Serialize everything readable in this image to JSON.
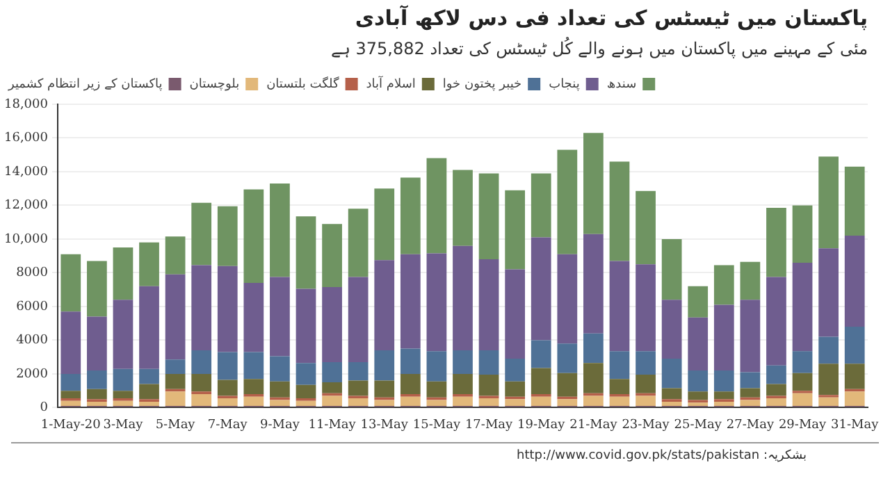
{
  "chart_data": {
    "type": "bar",
    "stacked": true,
    "title": "پاکستان میں ٹیسٹس کی تعداد فی دس لاکھ آبادی",
    "subtitle": "مئی کے مہینے میں پاکستان میں ہونے والے کُل ٹیسٹس کی تعداد 375,882 ہے",
    "annotations": [
      "بشکریہ: http://www.covid.gov.pk/stats/pakistan"
    ],
    "categories": [
      "1-May-20",
      null,
      "3-May",
      null,
      "5-May",
      null,
      "7-May",
      null,
      "9-May",
      null,
      "11-May",
      null,
      "13-May",
      null,
      "15-May",
      null,
      "17-May",
      null,
      "19-May",
      null,
      "21-May",
      null,
      "23-May",
      null,
      "25-May",
      null,
      "27-May",
      null,
      "29-May",
      null,
      "31-May"
    ],
    "ylim": [
      0,
      18000
    ],
    "yticks": [
      0,
      2000,
      4000,
      6000,
      8000,
      {
        "value": 10000,
        "label": "10,000"
      },
      {
        "value": 12000,
        "label": "12,000"
      },
      {
        "value": 14000,
        "label": "14,000"
      },
      {
        "value": 16000,
        "label": "16,000"
      },
      {
        "value": 18000,
        "label": "18,000"
      }
    ],
    "grid": "y",
    "legend": "top",
    "series": [
      {
        "name": "پاکستان کے زیر انتظام کشمیر",
        "color": "#7a5a6e",
        "values": [
          100,
          100,
          100,
          100,
          100,
          100,
          100,
          100,
          100,
          100,
          100,
          100,
          100,
          100,
          100,
          100,
          100,
          100,
          100,
          100,
          100,
          100,
          100,
          100,
          100,
          100,
          100,
          100,
          100,
          100,
          100
        ]
      },
      {
        "name": "بلوچستان",
        "color": "#e2b87a",
        "values": [
          300,
          250,
          300,
          250,
          850,
          700,
          450,
          550,
          350,
          300,
          600,
          450,
          350,
          550,
          350,
          550,
          450,
          400,
          550,
          400,
          600,
          550,
          600,
          250,
          200,
          250,
          350,
          450,
          750,
          500,
          850
        ]
      },
      {
        "name": "گلگت بلتستان",
        "color": "#b5604a",
        "values": [
          150,
          150,
          150,
          150,
          150,
          150,
          150,
          150,
          150,
          150,
          150,
          150,
          150,
          150,
          150,
          150,
          150,
          150,
          150,
          150,
          150,
          150,
          150,
          150,
          150,
          150,
          150,
          150,
          150,
          150,
          150
        ]
      },
      {
        "name": "اسلام آباد",
        "color": "#6b6b3a",
        "values": [
          450,
          600,
          450,
          900,
          900,
          1050,
          950,
          900,
          950,
          800,
          650,
          900,
          1000,
          1200,
          950,
          1200,
          1250,
          900,
          1550,
          1400,
          1800,
          900,
          1100,
          650,
          500,
          450,
          550,
          700,
          1050,
          1850,
          1500
        ]
      },
      {
        "name": "خیبر پختون خوا",
        "color": "#4f7196",
        "values": [
          1000,
          1100,
          1300,
          900,
          850,
          1400,
          1650,
          1600,
          1500,
          1300,
          1200,
          1100,
          1800,
          1500,
          1800,
          1400,
          1450,
          1350,
          1650,
          1750,
          1750,
          1650,
          1400,
          1750,
          1250,
          1250,
          950,
          1100,
          1300,
          1600,
          2200
        ]
      },
      {
        "name": "پنجاب",
        "color": "#6f5d8f",
        "values": [
          3700,
          3200,
          4100,
          4900,
          5050,
          5050,
          5100,
          4100,
          4700,
          4400,
          4450,
          5050,
          5350,
          5600,
          5800,
          6200,
          5400,
          5300,
          6100,
          5300,
          5900,
          5350,
          5150,
          3500,
          3150,
          3900,
          4300,
          5250,
          5250,
          5250,
          5400
        ]
      },
      {
        "name": "سندھ",
        "color": "#6f9462",
        "values": [
          3400,
          3300,
          3100,
          2600,
          2250,
          3700,
          3550,
          5550,
          5550,
          4300,
          3750,
          4050,
          4250,
          4550,
          5650,
          4500,
          5100,
          4700,
          3800,
          6200,
          6000,
          5900,
          4350,
          3600,
          1850,
          2350,
          2250,
          4100,
          3400,
          5450,
          4100
        ]
      }
    ]
  }
}
